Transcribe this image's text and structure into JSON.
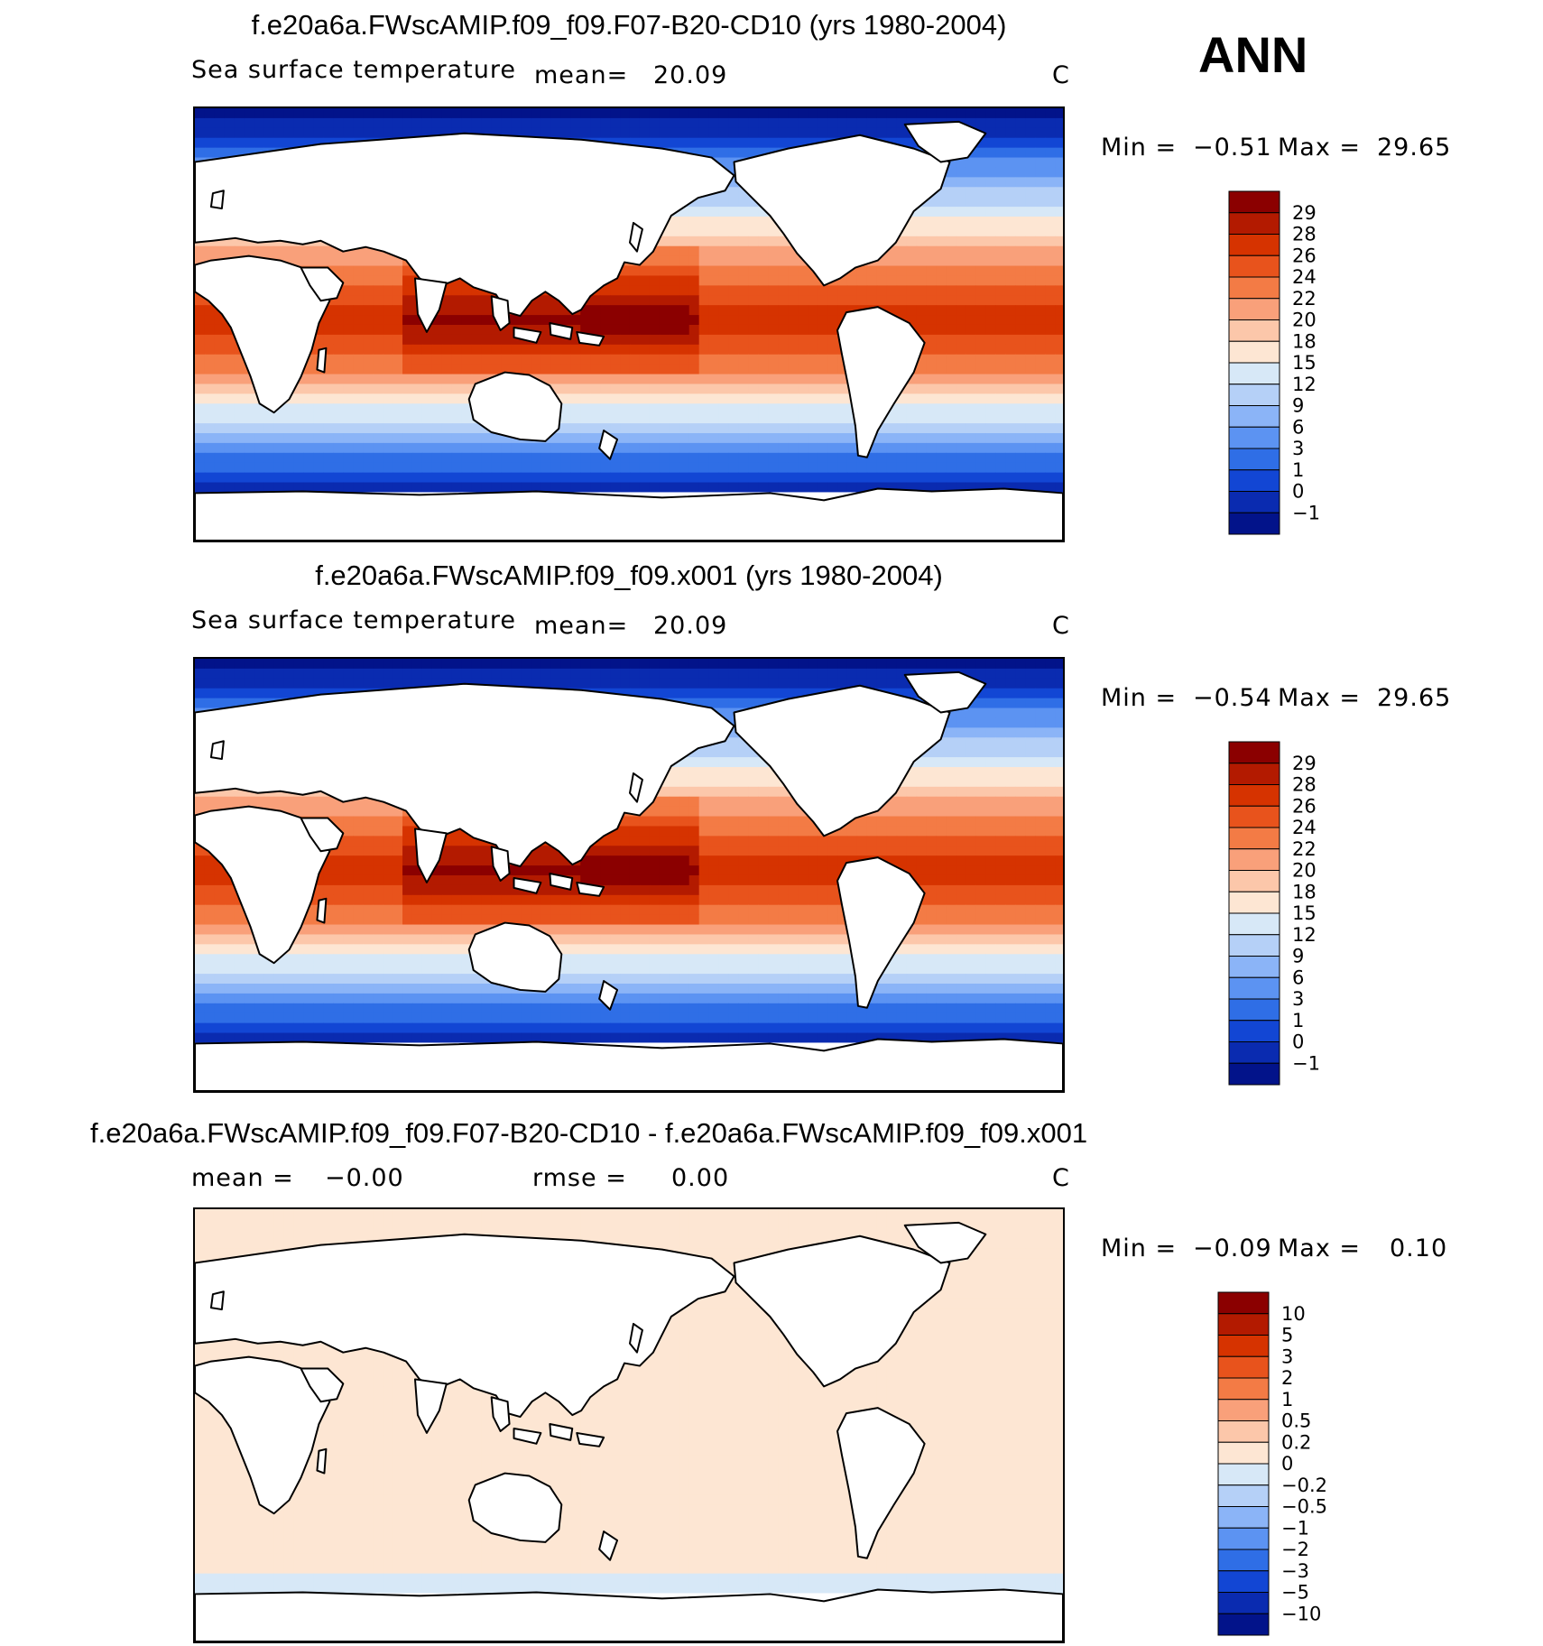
{
  "season": "ANN",
  "panels": [
    {
      "title": "f.e20a6a.FWscAMIP.f09_f09.F07-B20-CD10 (yrs 1980-2004)",
      "variable": "Sea surface temperature",
      "stat_label": "mean=",
      "stat_value": "20.09",
      "units": "C",
      "min_label": "Min =",
      "min_value": "−0.51",
      "max_label": "Max =",
      "max_value": "29.65",
      "map_kind": "sst",
      "colorbar": {
        "levels": [
          "29",
          "28",
          "26",
          "24",
          "22",
          "20",
          "18",
          "15",
          "12",
          "9",
          "6",
          "3",
          "1",
          "0",
          "−1"
        ],
        "colors": [
          "#8b0000",
          "#b31a00",
          "#d63300",
          "#e8531c",
          "#f37b45",
          "#f9a07a",
          "#fcc7aa",
          "#fde6d3",
          "#d7e8f7",
          "#b5d0f7",
          "#8bb4f7",
          "#5c93f2",
          "#2f6ee6",
          "#1246d4",
          "#0a2bb0",
          "#02138a"
        ]
      }
    },
    {
      "title": "f.e20a6a.FWscAMIP.f09_f09.x001 (yrs 1980-2004)",
      "variable": "Sea surface temperature",
      "stat_label": "mean=",
      "stat_value": "20.09",
      "units": "C",
      "min_label": "Min =",
      "min_value": "−0.54",
      "max_label": "Max =",
      "max_value": "29.65",
      "map_kind": "sst",
      "colorbar": {
        "levels": [
          "29",
          "28",
          "26",
          "24",
          "22",
          "20",
          "18",
          "15",
          "12",
          "9",
          "6",
          "3",
          "1",
          "0",
          "−1"
        ],
        "colors": [
          "#8b0000",
          "#b31a00",
          "#d63300",
          "#e8531c",
          "#f37b45",
          "#f9a07a",
          "#fcc7aa",
          "#fde6d3",
          "#d7e8f7",
          "#b5d0f7",
          "#8bb4f7",
          "#5c93f2",
          "#2f6ee6",
          "#1246d4",
          "#0a2bb0",
          "#02138a"
        ]
      }
    },
    {
      "title": "f.e20a6a.FWscAMIP.f09_f09.F07-B20-CD10 - f.e20a6a.FWscAMIP.f09_f09.x001",
      "mean_label": "mean =",
      "mean_value": "−0.00",
      "rmse_label": "rmse =",
      "rmse_value": "0.00",
      "units": "C",
      "min_label": "Min =",
      "min_value": "−0.09",
      "max_label": "Max =",
      "max_value": "0.10",
      "map_kind": "diff",
      "colorbar": {
        "levels": [
          "10",
          "5",
          "3",
          "2",
          "1",
          "0.5",
          "0.2",
          "0",
          "−0.2",
          "−0.5",
          "−1",
          "−2",
          "−3",
          "−5",
          "−10"
        ],
        "colors": [
          "#8b0000",
          "#b31a00",
          "#d63300",
          "#e8531c",
          "#f37b45",
          "#f9a07a",
          "#fcc7aa",
          "#fde6d3",
          "#d7e8f7",
          "#b5d0f7",
          "#8bb4f7",
          "#5c93f2",
          "#2f6ee6",
          "#1246d4",
          "#0a2bb0",
          "#02138a"
        ]
      }
    }
  ],
  "chart_data": [
    {
      "type": "heatmap",
      "title": "f.e20a6a.FWscAMIP.f09_f09.F07-B20-CD10 (yrs 1980-2004)",
      "variable": "Sea surface temperature",
      "units": "C",
      "mean": 20.09,
      "min": -0.51,
      "max": 29.65,
      "contour_levels": [
        -1,
        0,
        1,
        3,
        6,
        9,
        12,
        15,
        18,
        20,
        22,
        24,
        26,
        28,
        29
      ]
    },
    {
      "type": "heatmap",
      "title": "f.e20a6a.FWscAMIP.f09_f09.x001 (yrs 1980-2004)",
      "variable": "Sea surface temperature",
      "units": "C",
      "mean": 20.09,
      "min": -0.54,
      "max": 29.65,
      "contour_levels": [
        -1,
        0,
        1,
        3,
        6,
        9,
        12,
        15,
        18,
        20,
        22,
        24,
        26,
        28,
        29
      ]
    },
    {
      "type": "heatmap",
      "title": "f.e20a6a.FWscAMIP.f09_f09.F07-B20-CD10 - f.e20a6a.FWscAMIP.f09_f09.x001",
      "units": "C",
      "mean": -0.0,
      "rmse": 0.0,
      "min": -0.09,
      "max": 0.1,
      "contour_levels": [
        -10,
        -5,
        -3,
        -2,
        -1,
        -0.5,
        -0.2,
        0,
        0.2,
        0.5,
        1,
        2,
        3,
        5,
        10
      ]
    }
  ]
}
